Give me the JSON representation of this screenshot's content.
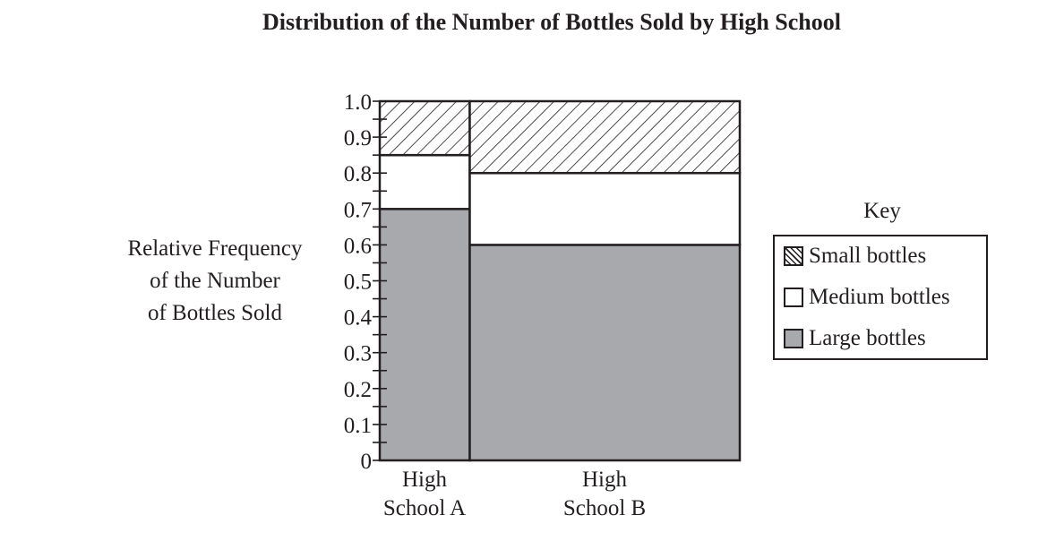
{
  "chart_data": {
    "type": "mosaic",
    "title": "Distribution of the Number of Bottles Sold by High School",
    "xlabel": "",
    "ylabel": "Relative Frequency of the Number of Bottles Sold",
    "ylim": [
      0,
      1.0
    ],
    "yticks": [
      "0",
      "0.1",
      "0.2",
      "0.3",
      "0.4",
      "0.5",
      "0.6",
      "0.7",
      "0.8",
      "0.9",
      "1.0"
    ],
    "minor_tick_step": 0.05,
    "categories": [
      "High School A",
      "High School B"
    ],
    "category_widths": [
      0.25,
      0.75
    ],
    "series": [
      {
        "name": "Large bottles",
        "values": [
          0.7,
          0.6
        ],
        "fill": "#a7a9ac"
      },
      {
        "name": "Medium bottles",
        "values": [
          0.15,
          0.2
        ],
        "fill": "#ffffff"
      },
      {
        "name": "Small bottles",
        "values": [
          0.15,
          0.2
        ],
        "fill": "hatched"
      }
    ],
    "cumulative_boundaries": {
      "High School A": [
        0.7,
        0.85,
        1.0
      ],
      "High School B": [
        0.6,
        0.8,
        1.0
      ]
    },
    "legend": {
      "title": "Key",
      "position": "right",
      "entries": [
        "Small bottles",
        "Medium bottles",
        "Large bottles"
      ]
    },
    "grid": false
  },
  "labels": {
    "title": "Distribution of the Number of Bottles Sold by High School",
    "ylabel_line1": "Relative Frequency",
    "ylabel_line2": "of the Number",
    "ylabel_line3": "of Bottles Sold",
    "xcat_a_line1": "High",
    "xcat_a_line2": "School A",
    "xcat_b_line1": "High",
    "xcat_b_line2": "School B",
    "key_title": "Key",
    "key_small": "Small bottles",
    "key_medium": "Medium bottles",
    "key_large": "Large bottles"
  }
}
